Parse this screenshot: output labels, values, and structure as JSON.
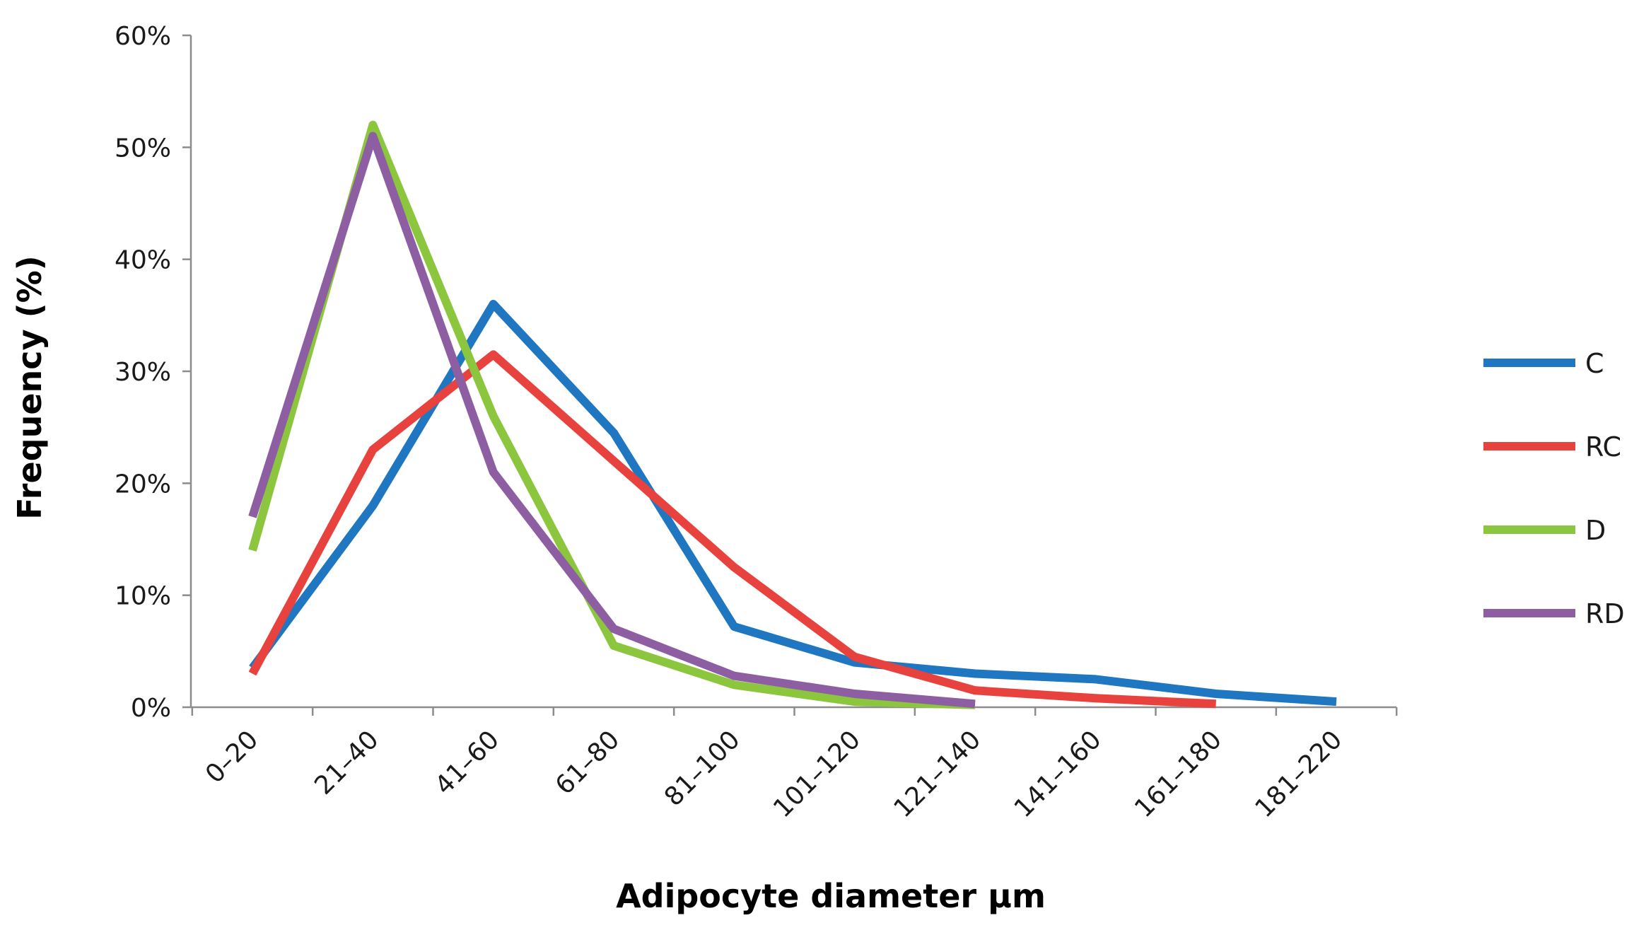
{
  "chart_data": {
    "type": "line",
    "title": "",
    "xlabel": "Adipocyte diameter μm",
    "ylabel": "Frequency (%)",
    "categories": [
      "0–20",
      "21–40",
      "41–60",
      "61–80",
      "81–100",
      "101–120",
      "121–140",
      "141–160",
      "161–180",
      "181–220"
    ],
    "ylim": [
      0,
      60
    ],
    "yticks": [
      0,
      10,
      20,
      30,
      40,
      50,
      60
    ],
    "ytick_suffix": "%",
    "grid": false,
    "legend_position": "right",
    "series": [
      {
        "name": "C",
        "color": "#1f77c1",
        "values": [
          3.5,
          18,
          36,
          24.5,
          7.2,
          4,
          3,
          2.5,
          1.2,
          0.5
        ]
      },
      {
        "name": "RC",
        "color": "#e8423f",
        "values": [
          3,
          23,
          31.5,
          22,
          12.5,
          4.5,
          1.5,
          0.8,
          0.3,
          null
        ]
      },
      {
        "name": "D",
        "color": "#8cc63f",
        "values": [
          14,
          52,
          26,
          5.5,
          2,
          0.5,
          0.2,
          null,
          null,
          null
        ]
      },
      {
        "name": "RD",
        "color": "#8e5ea2",
        "values": [
          17,
          51,
          21,
          7,
          2.8,
          1.2,
          0.3,
          null,
          null,
          null
        ]
      }
    ]
  }
}
